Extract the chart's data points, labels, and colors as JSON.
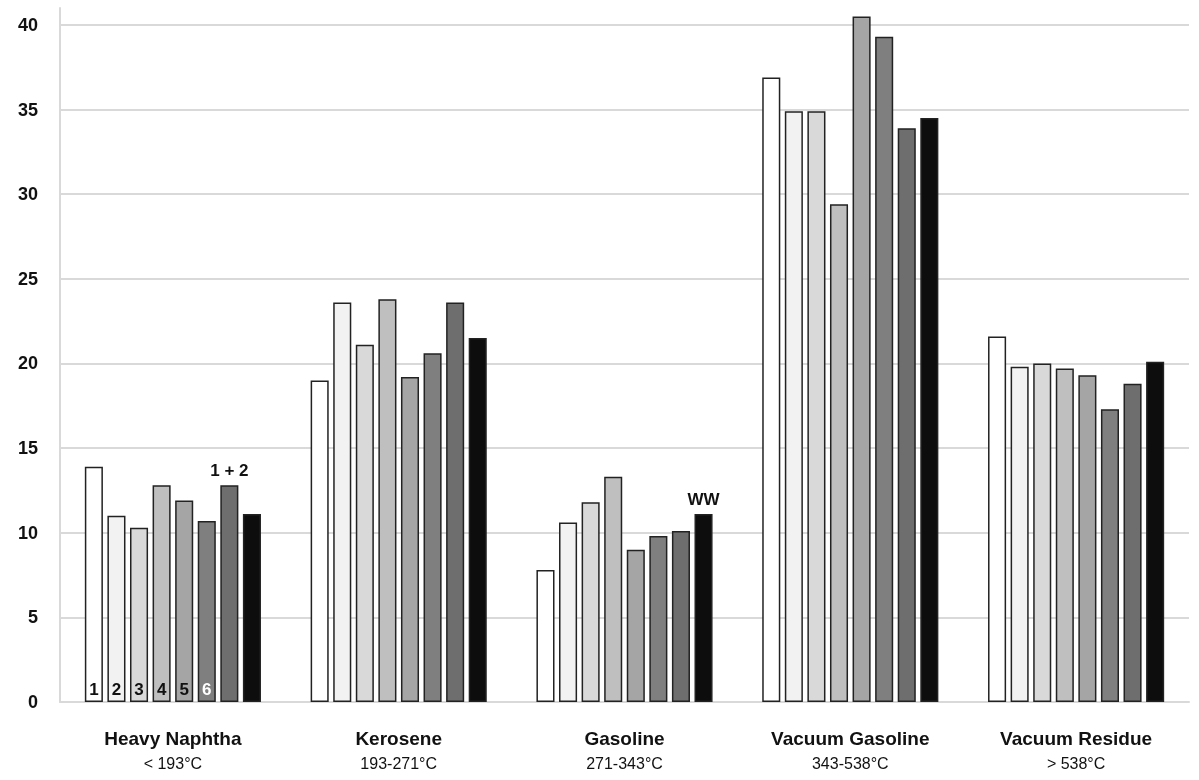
{
  "chart_data": {
    "type": "bar",
    "categories": [
      "Heavy Naphtha\n< 193°C",
      "Kerosene\n193-271°C",
      "Gasoline\n271-343°C",
      "Vacuum Gasoline\n343-538°C",
      "Vacuum Residue\n> 538°C"
    ],
    "series": [
      {
        "name": "1",
        "color": "#ffffff",
        "values": [
          13.9,
          19.0,
          7.8,
          36.9,
          21.6
        ]
      },
      {
        "name": "2",
        "color": "#f2f2f2",
        "values": [
          11.0,
          23.6,
          10.6,
          34.9,
          19.8
        ]
      },
      {
        "name": "3",
        "color": "#d9d9d9",
        "values": [
          10.3,
          21.1,
          11.8,
          34.9,
          20.0
        ]
      },
      {
        "name": "4",
        "color": "#bfbfbf",
        "values": [
          12.8,
          23.8,
          13.3,
          29.4,
          19.7
        ]
      },
      {
        "name": "5",
        "color": "#a5a5a5",
        "values": [
          11.9,
          19.2,
          9.0,
          40.5,
          19.3
        ]
      },
      {
        "name": "6",
        "color": "#7f7f7f",
        "values": [
          10.7,
          20.6,
          9.8,
          39.3,
          17.3
        ]
      },
      {
        "name": "1 + 2",
        "color": "#6e6e6e",
        "values": [
          12.8,
          23.6,
          10.1,
          33.9,
          18.8
        ]
      },
      {
        "name": "WW",
        "color": "#0d0d0d",
        "values": [
          11.1,
          21.5,
          11.1,
          34.5,
          20.1
        ]
      }
    ],
    "ylim": [
      0,
      41
    ],
    "yticks": [
      0,
      5,
      10,
      15,
      20,
      25,
      30,
      35,
      40
    ],
    "grid": "y",
    "legend": false
  }
}
